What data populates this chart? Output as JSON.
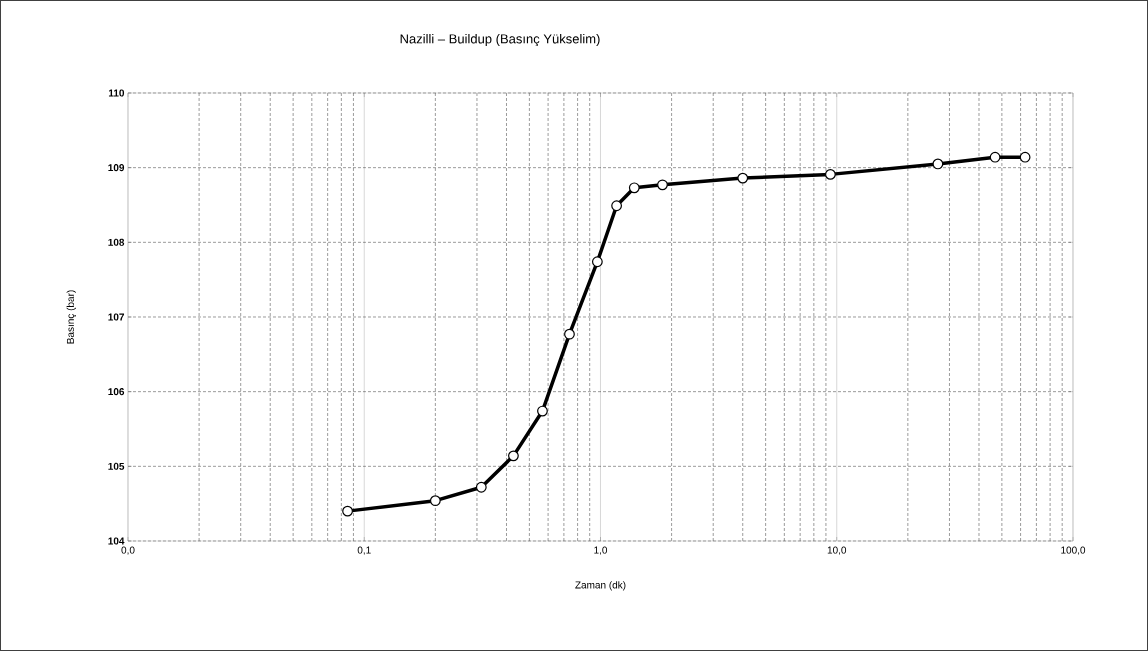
{
  "chart_data": {
    "type": "line",
    "title": "Nazilli – Buildup (Basınç Yükselim)",
    "xlabel": "Zaman (dk)",
    "ylabel": "Basınç (bar)",
    "log": "x",
    "grid": true,
    "marker": "circle",
    "line_style": "solid",
    "xlim": [
      0.01,
      100
    ],
    "xticks": [
      {
        "value": 0.01,
        "label": "0,0"
      },
      {
        "value": 0.1,
        "label": "0,1"
      },
      {
        "value": 1,
        "label": "1,0"
      },
      {
        "value": 10,
        "label": "10,0"
      },
      {
        "value": 100,
        "label": "100,0"
      }
    ],
    "ylim": [
      104,
      110
    ],
    "yticks": [
      104,
      105,
      106,
      107,
      108,
      109,
      110
    ],
    "series": [
      {
        "color": "#000000",
        "x": [
          0.085,
          0.2,
          0.313,
          0.428,
          0.568,
          0.739,
          0.97,
          1.17,
          1.39,
          1.83,
          4.0,
          9.4,
          26.8,
          46.8,
          62.7
        ],
        "values": [
          104.4,
          104.54,
          104.72,
          105.14,
          105.74,
          106.77,
          107.74,
          108.49,
          108.73,
          108.77,
          108.86,
          108.91,
          109.05,
          109.14,
          109.14
        ]
      }
    ]
  }
}
